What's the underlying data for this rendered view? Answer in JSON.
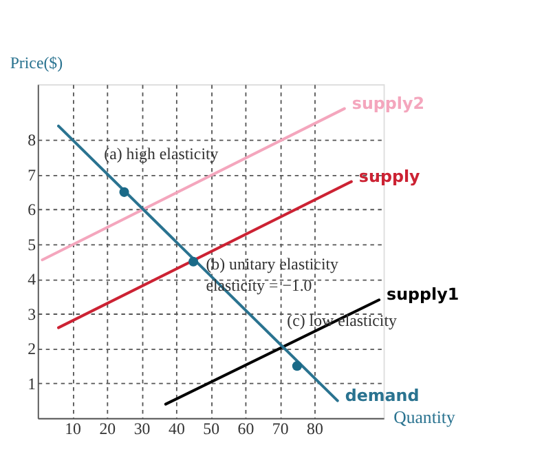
{
  "chart_data": {
    "type": "line",
    "xlabel": "Quantity",
    "ylabel": "Price($)",
    "xlim": [
      0,
      100
    ],
    "ylim": [
      0,
      9.6
    ],
    "xticks": [
      10,
      20,
      30,
      40,
      50,
      60,
      70,
      80
    ],
    "yticks": [
      1,
      2,
      3,
      4,
      5,
      6,
      7,
      8
    ],
    "grid": true,
    "line_style": "solid",
    "series": [
      {
        "name": "supply2",
        "color": "#f4a6bd",
        "x": [
          1.3,
          88.7
        ],
        "values": [
          4.55,
          8.9
        ]
      },
      {
        "name": "supply",
        "color": "#cc2233",
        "x": [
          6,
          90.7
        ],
        "values": [
          2.6,
          6.8
        ]
      },
      {
        "name": "supply1",
        "color": "#000000",
        "x": [
          37,
          98.7
        ],
        "values": [
          0.4,
          3.4
        ]
      },
      {
        "name": "demand",
        "color": "#2a7390",
        "x": [
          6,
          86.7
        ],
        "values": [
          8.4,
          0.5
        ]
      },
      {
        "type": "scatter",
        "marker": "circle",
        "color": "#1a6a88",
        "x": [
          25,
          45,
          75
        ],
        "values": [
          6.5,
          4.5,
          1.5
        ]
      }
    ],
    "annotations": [
      {
        "text": "(a) high elasticity",
        "x": 25,
        "y": 6.5
      },
      {
        "text": "(b) unitary elasticity\nelasticity = −1.0",
        "x": 45,
        "y": 4.5
      },
      {
        "text": "(c) low elasticity",
        "x": 75,
        "y": 1.5
      }
    ]
  }
}
